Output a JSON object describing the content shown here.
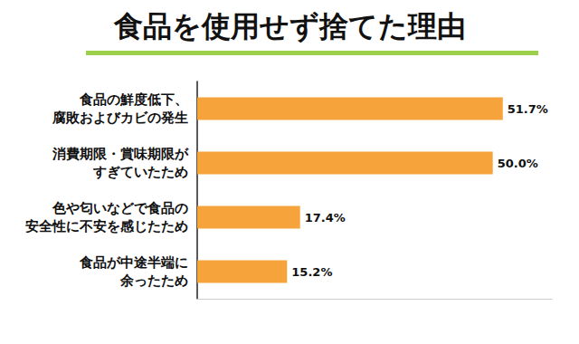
{
  "chart_data": {
    "type": "bar",
    "title": "食品を使用せず捨てた理由",
    "orientation": "horizontal",
    "categories": [
      "食品の鮮度低下、\n腐敗およびカビの発生",
      "消費期限・賞味期限が\nすぎていたため",
      "色や匂いなどで食品の\n安全性に不安を感じたため",
      "食品が中途半端に\n余ったため"
    ],
    "values": [
      51.7,
      50.0,
      17.4,
      15.2
    ],
    "value_labels": [
      "51.7%",
      "50.0%",
      "17.4%",
      "15.2%"
    ],
    "data_labels": true,
    "color": "#f5a33a",
    "xlim": [
      0,
      60
    ],
    "tick_labels": "y",
    "grid": false
  }
}
